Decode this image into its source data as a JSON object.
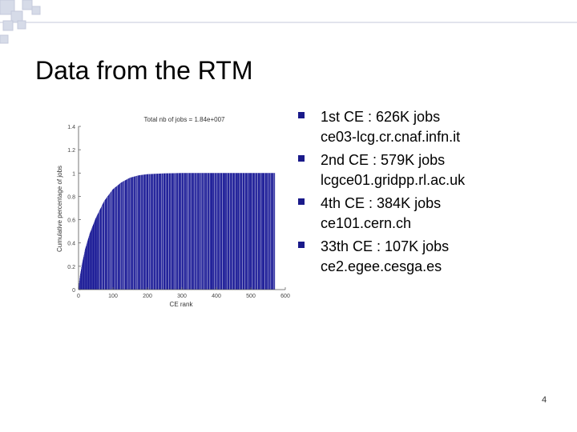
{
  "slide": {
    "title": "Data from the RTM",
    "page_number": "4"
  },
  "bullets": [
    {
      "line1": "1st CE : 626K jobs",
      "line2": "ce03-lcg.cr.cnaf.infn.it"
    },
    {
      "line1": "2nd CE : 579K jobs",
      "line2": "lcgce01.gridpp.rl.ac.uk"
    },
    {
      "line1": "4th CE : 384K jobs",
      "line2": "ce101.cern.ch"
    },
    {
      "line1": "33th CE : 107K jobs",
      "line2": "ce2.egee.cesga.es"
    }
  ],
  "colors": {
    "bar": "#00008b",
    "bullet_marker": "#1a1a8a",
    "deco_square": "#d6dbe8",
    "deco_border": "#c4cadb"
  },
  "chart_data": {
    "type": "bar",
    "title": "Total nb of jobs = 1.84e+007",
    "xlabel": "CE rank",
    "ylabel": "Cumulative percentage of jobs",
    "xlim": [
      0,
      600
    ],
    "ylim": [
      0,
      1.4
    ],
    "xticks": [
      "0",
      "100",
      "200",
      "300",
      "400",
      "500",
      "600"
    ],
    "yticks": [
      "0",
      "0.2",
      "0.4",
      "0.6",
      "0.8",
      "1",
      "1.2",
      "1.4"
    ],
    "bar_count": 570,
    "x": [
      1,
      5,
      10,
      20,
      33,
      50,
      75,
      100,
      125,
      150,
      175,
      200,
      250,
      300,
      400,
      500,
      570
    ],
    "values": [
      0.034,
      0.12,
      0.21,
      0.35,
      0.48,
      0.61,
      0.76,
      0.86,
      0.92,
      0.96,
      0.98,
      0.99,
      0.997,
      1.0,
      1.0,
      1.0,
      1.0
    ]
  }
}
